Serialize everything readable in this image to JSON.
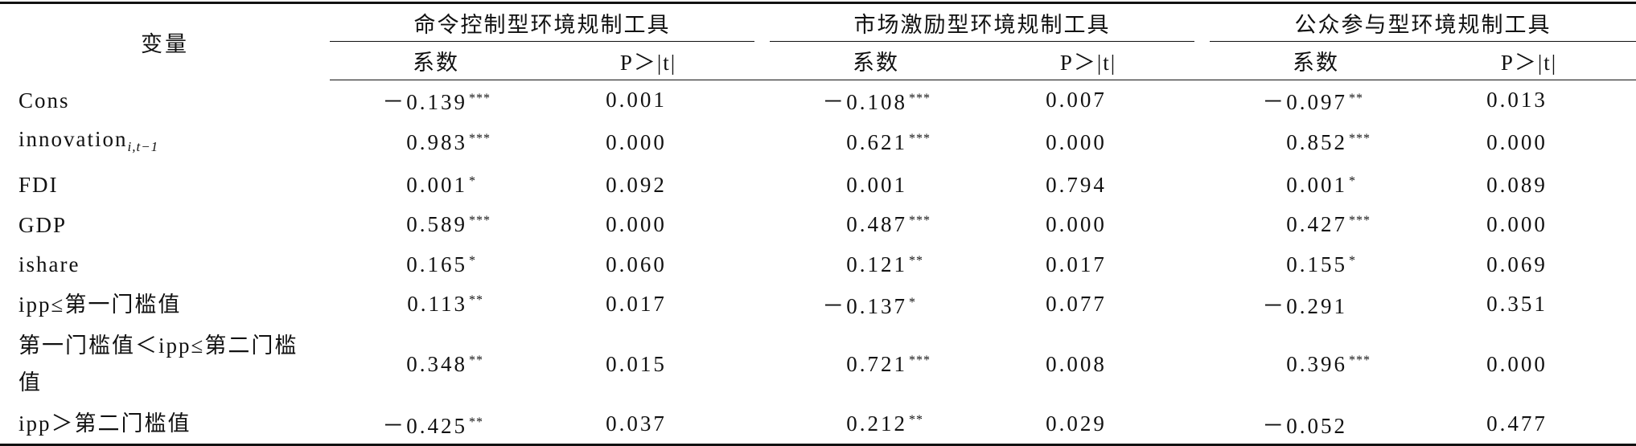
{
  "header": {
    "variable": "变量",
    "groups": [
      {
        "title": "命令控制型环境规制工具",
        "coef": "系数",
        "p": "P＞|t|"
      },
      {
        "title": "市场激励型环境规制工具",
        "coef": "系数",
        "p": "P＞|t|"
      },
      {
        "title": "公众参与型环境规制工具",
        "coef": "系数",
        "p": "P＞|t|"
      }
    ]
  },
  "rows": [
    {
      "variable": "Cons",
      "cells": [
        {
          "coef": "－0.139",
          "stars": "***",
          "p": "0.001"
        },
        {
          "coef": "－0.108",
          "stars": "***",
          "p": "0.007"
        },
        {
          "coef": "－0.097",
          "stars": "**",
          "p": "0.013"
        }
      ]
    },
    {
      "variable": "innovation",
      "subscript": "i,t−1",
      "cells": [
        {
          "coef": "0.983",
          "stars": "***",
          "p": "0.000"
        },
        {
          "coef": "0.621",
          "stars": "***",
          "p": "0.000"
        },
        {
          "coef": "0.852",
          "stars": "***",
          "p": "0.000"
        }
      ]
    },
    {
      "variable": "FDI",
      "cells": [
        {
          "coef": "0.001",
          "stars": "*",
          "p": "0.092"
        },
        {
          "coef": "0.001",
          "p": "0.794"
        },
        {
          "coef": "0.001",
          "stars": "*",
          "p": "0.089"
        }
      ]
    },
    {
      "variable": "GDP",
      "cells": [
        {
          "coef": "0.589",
          "stars": "***",
          "p": "0.000"
        },
        {
          "coef": "0.487",
          "stars": "***",
          "p": "0.000"
        },
        {
          "coef": "0.427",
          "stars": "***",
          "p": "0.000"
        }
      ]
    },
    {
      "variable": "ishare",
      "cells": [
        {
          "coef": "0.165",
          "stars": "*",
          "p": "0.060"
        },
        {
          "coef": "0.121",
          "stars": "**",
          "p": "0.017"
        },
        {
          "coef": "0.155",
          "stars": "*",
          "p": "0.069"
        }
      ]
    },
    {
      "variable": "ipp≤第一门槛值",
      "cells": [
        {
          "coef": "0.113",
          "stars": "**",
          "p": "0.017"
        },
        {
          "coef": "－0.137",
          "stars": "*",
          "p": "0.077"
        },
        {
          "coef": "－0.291",
          "p": "0.351"
        }
      ]
    },
    {
      "variable": "第一门槛值＜ipp≤第二门槛值",
      "cells": [
        {
          "coef": "0.348",
          "stars": "**",
          "p": "0.015"
        },
        {
          "coef": "0.721",
          "stars": "***",
          "p": "0.008"
        },
        {
          "coef": "0.396",
          "stars": "***",
          "p": "0.000"
        }
      ]
    },
    {
      "variable": "ipp＞第二门槛值",
      "cells": [
        {
          "coef": "－0.425",
          "stars": "**",
          "p": "0.037"
        },
        {
          "coef": "0.212",
          "stars": "**",
          "p": "0.029"
        },
        {
          "coef": "－0.052",
          "p": "0.477"
        }
      ]
    }
  ]
}
